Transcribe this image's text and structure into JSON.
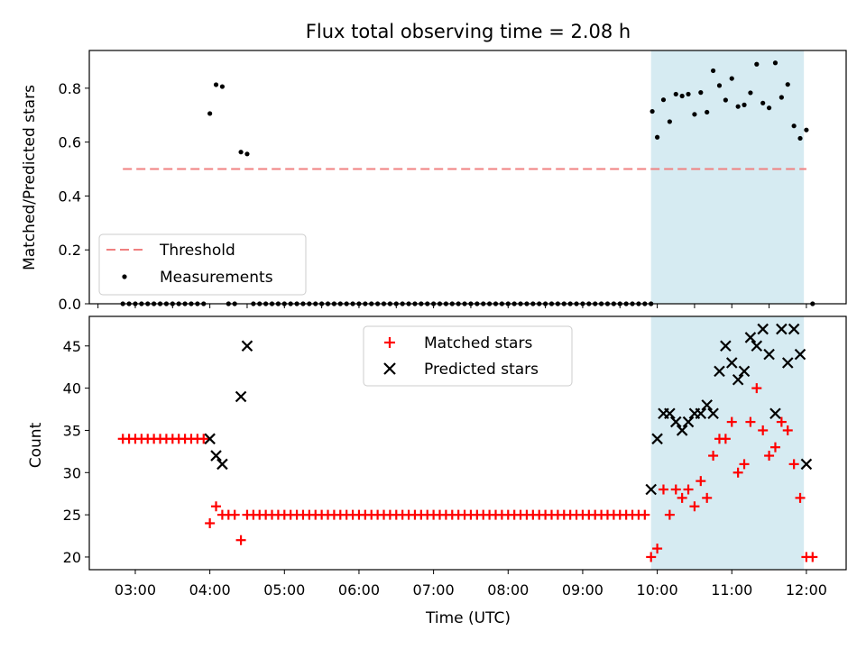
{
  "title": "Flux total observing time = 2.08 h",
  "chart_data": [
    {
      "type": "scatter",
      "panel": "top",
      "xlabel": "",
      "ylabel": "Matched/Predicted stars",
      "xlim": [
        "02:23",
        "12:32"
      ],
      "ylim": [
        0,
        0.94
      ],
      "yticks": [
        "0.0",
        "0.2",
        "0.4",
        "0.6",
        "0.8"
      ],
      "grid": false,
      "legend_position": "lower-left",
      "shaded_region": {
        "from": "09:55",
        "to": "11:58",
        "color": "#add8e6"
      },
      "threshold": {
        "name": "Threshold",
        "value": 0.5,
        "from": "02:50",
        "to": "12:00",
        "color": "#f08080"
      },
      "series": [
        {
          "name": "Measurements",
          "color": "#000000",
          "points": [
            [
              "02:50",
              0
            ],
            [
              "02:55",
              0
            ],
            [
              "03:00",
              0
            ],
            [
              "03:05",
              0
            ],
            [
              "03:10",
              0
            ],
            [
              "03:15",
              0
            ],
            [
              "03:20",
              0
            ],
            [
              "03:25",
              0
            ],
            [
              "03:30",
              0
            ],
            [
              "03:35",
              0
            ],
            [
              "03:40",
              0
            ],
            [
              "03:45",
              0
            ],
            [
              "03:50",
              0
            ],
            [
              "03:55",
              0
            ],
            [
              "04:00",
              0.706
            ],
            [
              "04:05",
              0.813
            ],
            [
              "04:10",
              0.806
            ],
            [
              "04:15",
              0
            ],
            [
              "04:20",
              0
            ],
            [
              "04:25",
              0.563
            ],
            [
              "04:30",
              0.556
            ],
            [
              "04:35",
              0
            ],
            [
              "04:40",
              0
            ],
            [
              "04:45",
              0
            ],
            [
              "04:50",
              0
            ],
            [
              "04:55",
              0
            ],
            [
              "05:00",
              0
            ],
            [
              "05:05",
              0
            ],
            [
              "05:10",
              0
            ],
            [
              "05:15",
              0
            ],
            [
              "05:20",
              0
            ],
            [
              "05:25",
              0
            ],
            [
              "05:30",
              0
            ],
            [
              "05:35",
              0
            ],
            [
              "05:40",
              0
            ],
            [
              "05:45",
              0
            ],
            [
              "05:50",
              0
            ],
            [
              "05:55",
              0
            ],
            [
              "06:00",
              0
            ],
            [
              "06:05",
              0
            ],
            [
              "06:10",
              0
            ],
            [
              "06:15",
              0
            ],
            [
              "06:20",
              0
            ],
            [
              "06:25",
              0
            ],
            [
              "06:30",
              0
            ],
            [
              "06:35",
              0
            ],
            [
              "06:40",
              0
            ],
            [
              "06:45",
              0
            ],
            [
              "06:50",
              0
            ],
            [
              "06:55",
              0
            ],
            [
              "07:00",
              0
            ],
            [
              "07:05",
              0
            ],
            [
              "07:10",
              0
            ],
            [
              "07:15",
              0
            ],
            [
              "07:20",
              0
            ],
            [
              "07:25",
              0
            ],
            [
              "07:30",
              0
            ],
            [
              "07:35",
              0
            ],
            [
              "07:40",
              0
            ],
            [
              "07:45",
              0
            ],
            [
              "07:50",
              0
            ],
            [
              "07:55",
              0
            ],
            [
              "08:00",
              0
            ],
            [
              "08:05",
              0
            ],
            [
              "08:10",
              0
            ],
            [
              "08:15",
              0
            ],
            [
              "08:20",
              0
            ],
            [
              "08:25",
              0
            ],
            [
              "08:30",
              0
            ],
            [
              "08:35",
              0
            ],
            [
              "08:40",
              0
            ],
            [
              "08:45",
              0
            ],
            [
              "08:50",
              0
            ],
            [
              "08:55",
              0
            ],
            [
              "09:00",
              0
            ],
            [
              "09:05",
              0
            ],
            [
              "09:10",
              0
            ],
            [
              "09:15",
              0
            ],
            [
              "09:20",
              0
            ],
            [
              "09:25",
              0
            ],
            [
              "09:30",
              0
            ],
            [
              "09:35",
              0
            ],
            [
              "09:40",
              0
            ],
            [
              "09:45",
              0
            ],
            [
              "09:50",
              0
            ],
            [
              "09:55",
              0
            ],
            [
              "09:56",
              0.714
            ],
            [
              "10:00",
              0.618
            ],
            [
              "10:05",
              0.757
            ],
            [
              "10:10",
              0.676
            ],
            [
              "10:15",
              0.778
            ],
            [
              "10:20",
              0.771
            ],
            [
              "10:25",
              0.778
            ],
            [
              "10:30",
              0.703
            ],
            [
              "10:35",
              0.784
            ],
            [
              "10:40",
              0.711
            ],
            [
              "10:45",
              0.865
            ],
            [
              "10:50",
              0.81
            ],
            [
              "10:55",
              0.756
            ],
            [
              "11:00",
              0.836
            ],
            [
              "11:05",
              0.732
            ],
            [
              "11:10",
              0.738
            ],
            [
              "11:15",
              0.783
            ],
            [
              "11:20",
              0.889
            ],
            [
              "11:25",
              0.745
            ],
            [
              "11:30",
              0.727
            ],
            [
              "11:35",
              0.894
            ],
            [
              "11:40",
              0.766
            ],
            [
              "11:45",
              0.814
            ],
            [
              "11:50",
              0.66
            ],
            [
              "11:55",
              0.614
            ],
            [
              "12:00",
              0.645
            ],
            [
              "12:05",
              0
            ]
          ]
        }
      ]
    },
    {
      "type": "scatter",
      "panel": "bottom",
      "xlabel": "Time (UTC)",
      "ylabel": "Count",
      "xlim": [
        "02:23",
        "12:32"
      ],
      "ylim": [
        18.5,
        48.5
      ],
      "yticks": [
        "20",
        "25",
        "30",
        "35",
        "40",
        "45"
      ],
      "xticks": [
        "03:00",
        "04:00",
        "05:00",
        "06:00",
        "07:00",
        "08:00",
        "09:00",
        "10:00",
        "11:00",
        "12:00"
      ],
      "grid": false,
      "legend_position": "upper-center",
      "shaded_region": {
        "from": "09:55",
        "to": "11:58",
        "color": "#add8e6"
      },
      "series": [
        {
          "name": "Matched stars",
          "marker": "plus",
          "color": "#ff0000",
          "points": [
            [
              "02:50",
              34
            ],
            [
              "02:55",
              34
            ],
            [
              "03:00",
              34
            ],
            [
              "03:05",
              34
            ],
            [
              "03:10",
              34
            ],
            [
              "03:15",
              34
            ],
            [
              "03:20",
              34
            ],
            [
              "03:25",
              34
            ],
            [
              "03:30",
              34
            ],
            [
              "03:35",
              34
            ],
            [
              "03:40",
              34
            ],
            [
              "03:45",
              34
            ],
            [
              "03:50",
              34
            ],
            [
              "03:55",
              34
            ],
            [
              "04:00",
              24
            ],
            [
              "04:05",
              26
            ],
            [
              "04:10",
              25
            ],
            [
              "04:15",
              25
            ],
            [
              "04:20",
              25
            ],
            [
              "04:25",
              22
            ],
            [
              "04:30",
              25
            ],
            [
              "04:35",
              25
            ],
            [
              "04:40",
              25
            ],
            [
              "04:45",
              25
            ],
            [
              "04:50",
              25
            ],
            [
              "04:55",
              25
            ],
            [
              "05:00",
              25
            ],
            [
              "05:05",
              25
            ],
            [
              "05:10",
              25
            ],
            [
              "05:15",
              25
            ],
            [
              "05:20",
              25
            ],
            [
              "05:25",
              25
            ],
            [
              "05:30",
              25
            ],
            [
              "05:35",
              25
            ],
            [
              "05:40",
              25
            ],
            [
              "05:45",
              25
            ],
            [
              "05:50",
              25
            ],
            [
              "05:55",
              25
            ],
            [
              "06:00",
              25
            ],
            [
              "06:05",
              25
            ],
            [
              "06:10",
              25
            ],
            [
              "06:15",
              25
            ],
            [
              "06:20",
              25
            ],
            [
              "06:25",
              25
            ],
            [
              "06:30",
              25
            ],
            [
              "06:35",
              25
            ],
            [
              "06:40",
              25
            ],
            [
              "06:45",
              25
            ],
            [
              "06:50",
              25
            ],
            [
              "06:55",
              25
            ],
            [
              "07:00",
              25
            ],
            [
              "07:05",
              25
            ],
            [
              "07:10",
              25
            ],
            [
              "07:15",
              25
            ],
            [
              "07:20",
              25
            ],
            [
              "07:25",
              25
            ],
            [
              "07:30",
              25
            ],
            [
              "07:35",
              25
            ],
            [
              "07:40",
              25
            ],
            [
              "07:45",
              25
            ],
            [
              "07:50",
              25
            ],
            [
              "07:55",
              25
            ],
            [
              "08:00",
              25
            ],
            [
              "08:05",
              25
            ],
            [
              "08:10",
              25
            ],
            [
              "08:15",
              25
            ],
            [
              "08:20",
              25
            ],
            [
              "08:25",
              25
            ],
            [
              "08:30",
              25
            ],
            [
              "08:35",
              25
            ],
            [
              "08:40",
              25
            ],
            [
              "08:45",
              25
            ],
            [
              "08:50",
              25
            ],
            [
              "08:55",
              25
            ],
            [
              "09:00",
              25
            ],
            [
              "09:05",
              25
            ],
            [
              "09:10",
              25
            ],
            [
              "09:15",
              25
            ],
            [
              "09:20",
              25
            ],
            [
              "09:25",
              25
            ],
            [
              "09:30",
              25
            ],
            [
              "09:35",
              25
            ],
            [
              "09:40",
              25
            ],
            [
              "09:45",
              25
            ],
            [
              "09:50",
              25
            ],
            [
              "09:55",
              20
            ],
            [
              "10:00",
              21
            ],
            [
              "10:05",
              28
            ],
            [
              "10:10",
              25
            ],
            [
              "10:15",
              28
            ],
            [
              "10:20",
              27
            ],
            [
              "10:25",
              28
            ],
            [
              "10:30",
              26
            ],
            [
              "10:35",
              29
            ],
            [
              "10:40",
              27
            ],
            [
              "10:45",
              32
            ],
            [
              "10:50",
              34
            ],
            [
              "10:55",
              34
            ],
            [
              "11:00",
              36
            ],
            [
              "11:05",
              30
            ],
            [
              "11:10",
              31
            ],
            [
              "11:15",
              36
            ],
            [
              "11:20",
              40
            ],
            [
              "11:25",
              35
            ],
            [
              "11:30",
              32
            ],
            [
              "11:35",
              33
            ],
            [
              "11:40",
              36
            ],
            [
              "11:45",
              35
            ],
            [
              "11:50",
              31
            ],
            [
              "11:55",
              27
            ],
            [
              "12:00",
              20
            ],
            [
              "12:05",
              20
            ]
          ]
        },
        {
          "name": "Predicted stars",
          "marker": "x",
          "color": "#000000",
          "points": [
            [
              "04:00",
              34
            ],
            [
              "04:05",
              32
            ],
            [
              "04:10",
              31
            ],
            [
              "04:25",
              39
            ],
            [
              "04:30",
              45
            ],
            [
              "09:55",
              28
            ],
            [
              "10:00",
              34
            ],
            [
              "10:05",
              37
            ],
            [
              "10:10",
              37
            ],
            [
              "10:15",
              36
            ],
            [
              "10:20",
              35
            ],
            [
              "10:25",
              36
            ],
            [
              "10:30",
              37
            ],
            [
              "10:35",
              37
            ],
            [
              "10:40",
              38
            ],
            [
              "10:45",
              37
            ],
            [
              "10:50",
              42
            ],
            [
              "10:55",
              45
            ],
            [
              "11:00",
              43
            ],
            [
              "11:05",
              41
            ],
            [
              "11:10",
              42
            ],
            [
              "11:15",
              46
            ],
            [
              "11:20",
              45
            ],
            [
              "11:25",
              47
            ],
            [
              "11:30",
              44
            ],
            [
              "11:35",
              37
            ],
            [
              "11:40",
              47
            ],
            [
              "11:45",
              43
            ],
            [
              "11:50",
              47
            ],
            [
              "11:55",
              44
            ],
            [
              "12:00",
              31
            ]
          ]
        }
      ]
    }
  ]
}
